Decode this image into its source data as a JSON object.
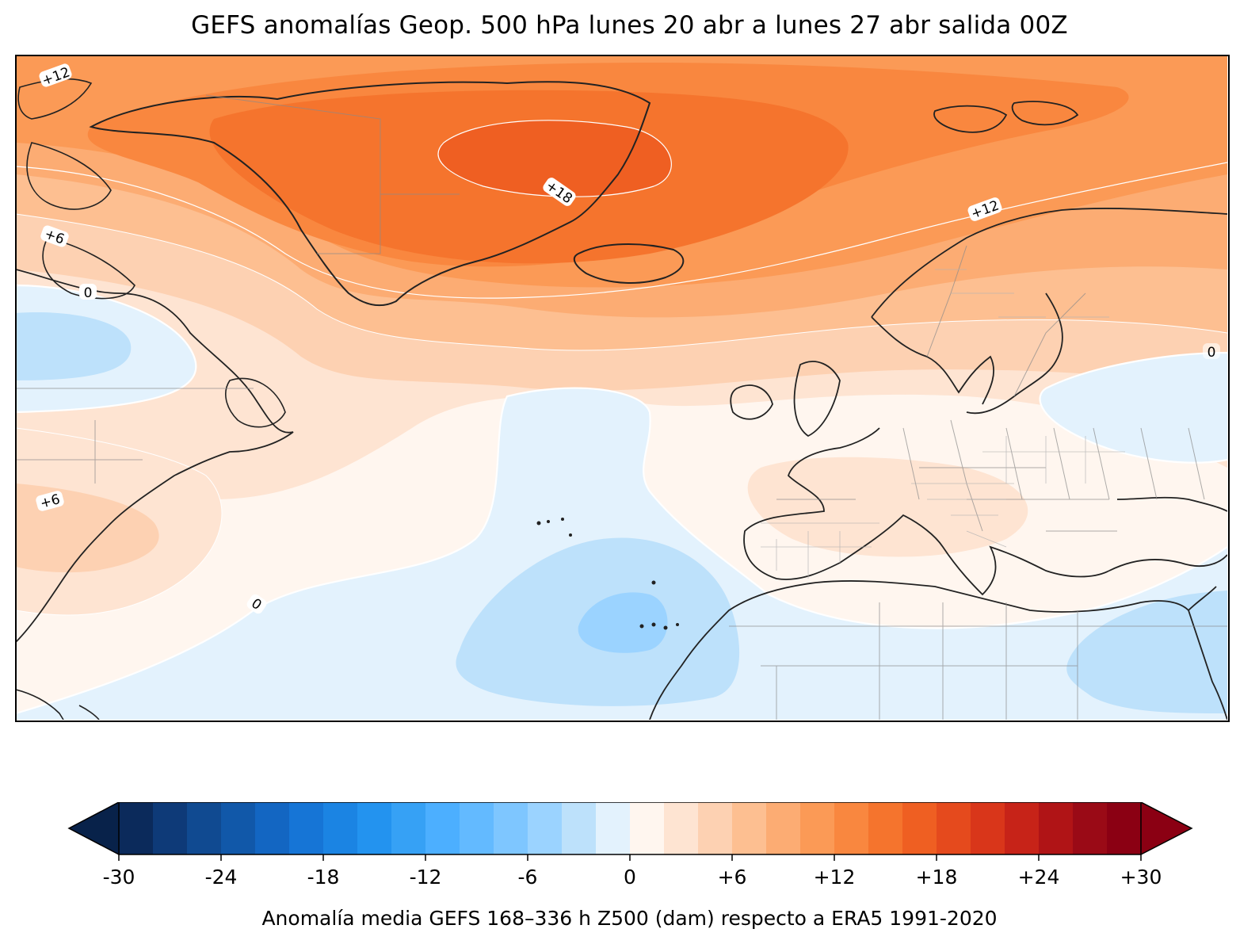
{
  "title": "GEFS anomalías Geop. 500 hPa lunes 20 abr a lunes 27 abr salida 00Z",
  "map": {
    "region": "North Atlantic / Europe",
    "contour_labels": [
      "+12",
      "+6",
      "0",
      "+6",
      "0",
      "+12",
      "+18",
      "0"
    ],
    "colors": {
      "coast": "#222222",
      "borders": "#8a8a8a",
      "contour_line": "#ffffff"
    }
  },
  "colorbar": {
    "tick_labels": [
      "-30",
      "-24",
      "-18",
      "-12",
      "-6",
      "0",
      "+6",
      "+12",
      "+18",
      "+24",
      "+30"
    ],
    "label": "Anomalía media GEFS 168–336 h Z500 (dam) respecto a ERA5 1991-2020",
    "under_color": "#08224a",
    "over_color": "#8b0013",
    "colors": [
      "#0b2a5b",
      "#0e3a78",
      "#104a91",
      "#1158a9",
      "#1366c2",
      "#1675d6",
      "#1b84e3",
      "#2393ef",
      "#36a1f5",
      "#4cafff",
      "#63baff",
      "#7ec6ff",
      "#9bd3ff",
      "#bde1fb",
      "#e3f2fd",
      "#fff6ef",
      "#fee4d2",
      "#fdd1b2",
      "#fdbf91",
      "#fcac73",
      "#fb9a56",
      "#f9873f",
      "#f5742d",
      "#ef5f22",
      "#e54a1d",
      "#d9361a",
      "#c72318",
      "#b01416",
      "#9a0a16",
      "#8b0013"
    ]
  }
}
